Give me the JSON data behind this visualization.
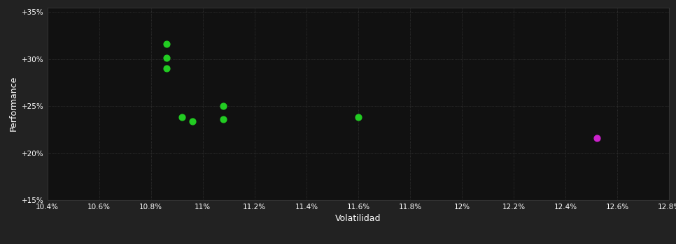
{
  "background_color": "#222222",
  "plot_bg_color": "#111111",
  "grid_color": "#444444",
  "text_color": "#ffffff",
  "xlabel": "Volatilidad",
  "ylabel": "Performance",
  "xlim": [
    0.104,
    0.128
  ],
  "ylim": [
    0.15,
    0.355
  ],
  "xticks": [
    0.104,
    0.106,
    0.108,
    0.11,
    0.112,
    0.114,
    0.116,
    0.118,
    0.12,
    0.122,
    0.124,
    0.126,
    0.128
  ],
  "yticks": [
    0.15,
    0.2,
    0.25,
    0.3,
    0.35
  ],
  "xtick_labels": [
    "10.4%",
    "10.6%",
    "10.8%",
    "11%",
    "11.2%",
    "11.4%",
    "11.6%",
    "11.8%",
    "12%",
    "12.2%",
    "12.4%",
    "12.6%",
    "12.8%"
  ],
  "ytick_labels": [
    "+15%",
    "+20%",
    "+25%",
    "+30%",
    "+35%"
  ],
  "green_points": [
    [
      0.1086,
      0.316
    ],
    [
      0.1086,
      0.301
    ],
    [
      0.1086,
      0.29
    ],
    [
      0.1092,
      0.238
    ],
    [
      0.1096,
      0.234
    ],
    [
      0.1108,
      0.25
    ],
    [
      0.1108,
      0.236
    ],
    [
      0.116,
      0.238
    ]
  ],
  "magenta_points": [
    [
      0.1252,
      0.216
    ]
  ],
  "green_color": "#22cc22",
  "magenta_color": "#cc22cc",
  "marker_size": 40
}
